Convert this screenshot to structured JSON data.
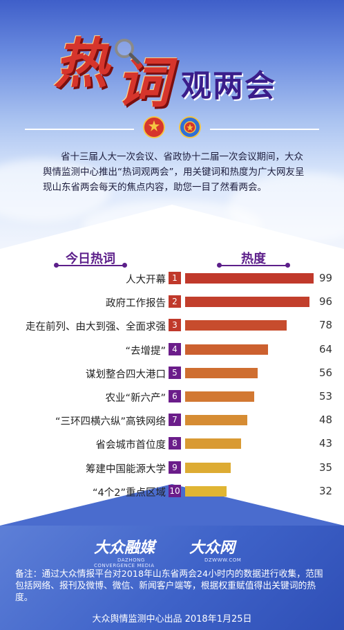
{
  "header": {
    "title_hot_1": "热",
    "title_hot_2": "词",
    "title_rest": "观两会",
    "intro": "省十三届人大一次会议、省政协十二届一次会议期间，大众舆情监测中心推出“热词观两会”，用关键词和热度为广大网友呈现山东省两会每天的焦点内容，助您一目了然看两会。"
  },
  "columns": {
    "left": "今日热词",
    "right": "热度"
  },
  "chart_data": {
    "type": "bar",
    "orientation": "horizontal",
    "categories": [
      "人大开幕",
      "政府工作报告",
      "走在前列、由大到强、全面求强",
      "“去增提”",
      "谋划整合四大港口",
      "农业“新六产”",
      "“三环四横六纵”高铁网络",
      "省会城市首位度",
      "筹建中国能源大学",
      "“4个2”重点区域"
    ],
    "ranks": [
      "1",
      "2",
      "3",
      "4",
      "5",
      "6",
      "7",
      "8",
      "9",
      "10"
    ],
    "values": [
      99,
      96,
      78,
      64,
      56,
      53,
      48,
      43,
      35,
      32
    ],
    "xlim": [
      0,
      100
    ],
    "rank_colors": [
      "#c0392b",
      "#c0392b",
      "#c0392b",
      "#6b1d8a",
      "#6b1d8a",
      "#6b1d8a",
      "#6b1d8a",
      "#6b1d8a",
      "#6b1d8a",
      "#6b1d8a"
    ],
    "bar_colors": [
      "#c0392b",
      "#c23f2c",
      "#c74c2d",
      "#cc602f",
      "#cf6e30",
      "#d27832",
      "#d68c33",
      "#d99a33",
      "#ddab33",
      "#e0b533"
    ]
  },
  "footer": {
    "logo1_main": "大众融媒",
    "logo1_sub1": "DAZHONG",
    "logo1_sub2": "CONVERGENCE MEDIA",
    "logo2_main": "大众网",
    "logo2_sub": "DZWWW.COM",
    "note": "备注：通过大众情报平台对2018年山东省两会24小时内的数据进行收集，范围包括网络、报刊及微博、微信、新闻客户端等，根据权重赋值得出关键词的热度。",
    "credit": "大众舆情监测中心出品 2018年1月25日"
  }
}
